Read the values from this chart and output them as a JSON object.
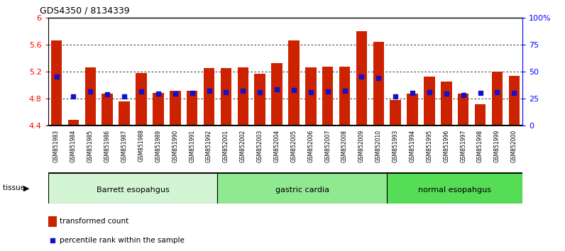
{
  "title": "GDS4350 / 8134339",
  "samples": [
    "GSM851983",
    "GSM851984",
    "GSM851985",
    "GSM851986",
    "GSM851987",
    "GSM851988",
    "GSM851989",
    "GSM851990",
    "GSM851991",
    "GSM851992",
    "GSM852001",
    "GSM852002",
    "GSM852003",
    "GSM852004",
    "GSM852005",
    "GSM852006",
    "GSM852007",
    "GSM852008",
    "GSM852009",
    "GSM852010",
    "GSM851993",
    "GSM851994",
    "GSM851995",
    "GSM851996",
    "GSM851997",
    "GSM851998",
    "GSM851999",
    "GSM852000"
  ],
  "red_values": [
    5.66,
    4.48,
    5.26,
    4.87,
    4.76,
    5.18,
    4.88,
    4.91,
    4.91,
    5.25,
    5.25,
    5.26,
    5.17,
    5.33,
    5.66,
    5.26,
    5.27,
    5.27,
    5.8,
    5.64,
    4.78,
    4.87,
    5.13,
    5.05,
    4.87,
    4.72,
    5.2,
    5.14
  ],
  "blue_values": [
    5.13,
    4.83,
    4.9,
    4.86,
    4.83,
    4.9,
    4.87,
    4.87,
    4.88,
    4.91,
    4.89,
    4.91,
    4.89,
    4.94,
    4.93,
    4.89,
    4.9,
    4.91,
    5.13,
    5.1,
    4.83,
    4.88,
    4.89,
    4.87,
    4.85,
    4.88,
    4.89,
    4.88
  ],
  "groups": [
    {
      "label": "Barrett esopahgus",
      "start": 0,
      "end": 10,
      "color": "#d4f5d4"
    },
    {
      "label": "gastric cardia",
      "start": 10,
      "end": 20,
      "color": "#90e890"
    },
    {
      "label": "normal esopahgus",
      "start": 20,
      "end": 28,
      "color": "#55dd55"
    }
  ],
  "ymin": 4.4,
  "ymax": 6.0,
  "yticks": [
    4.4,
    4.8,
    5.2,
    5.6,
    6.0
  ],
  "ytick_labels": [
    "4.4",
    "4.8",
    "5.2",
    "5.6",
    "6"
  ],
  "right_yticks": [
    0,
    25,
    50,
    75,
    100
  ],
  "right_ytick_labels": [
    "0",
    "25",
    "50",
    "75",
    "100%"
  ],
  "bar_color": "#cc2200",
  "dot_color": "#1111cc",
  "legend_color_red": "#cc2200",
  "legend_color_blue": "#1111cc",
  "xticklabel_bg": "#c8c8c8"
}
